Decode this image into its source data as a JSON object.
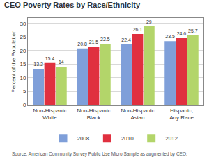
{
  "chart_data": {
    "type": "bar",
    "title": "CEO Poverty Rates by Race/Ethnicity",
    "y_label": "Percent of the Population",
    "source": "Source: American Community Survey Public Use Micro Sample as augmented by CEO.",
    "categories": [
      "Non-Hispanic White",
      "Non-Hispanic Black",
      "Non-Hispanic Asian",
      "Hispanic, Any Race"
    ],
    "series": [
      {
        "name": "2008",
        "color": "#7f9fd9",
        "values": [
          13.2,
          20.8,
          22.4,
          23.5
        ]
      },
      {
        "name": "2010",
        "color": "#e0303f",
        "values": [
          15.4,
          21.5,
          26.1,
          24.6
        ]
      },
      {
        "name": "2012",
        "color": "#b3d56a",
        "values": [
          14.0,
          22.5,
          29.0,
          25.7
        ]
      }
    ],
    "value_labels_note_free": true,
    "ylim": [
      0,
      32
    ],
    "yticks": [
      0,
      5,
      10,
      15,
      20,
      25,
      30
    ],
    "grid": true,
    "legend": "bottom",
    "data_labels": true
  }
}
